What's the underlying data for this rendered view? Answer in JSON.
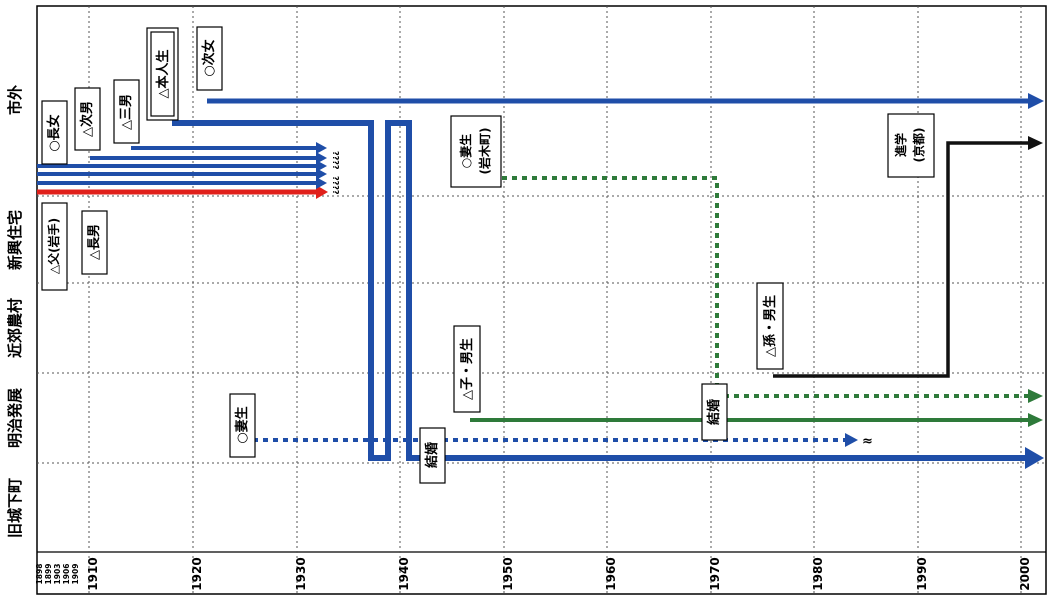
{
  "zones": [
    {
      "key": "shigai",
      "label": "市外"
    },
    {
      "key": "shinko",
      "label": "新興住宅"
    },
    {
      "key": "kinko",
      "label": "近郊農村"
    },
    {
      "key": "meiji",
      "label": "明治発展"
    },
    {
      "key": "kyujo",
      "label": "旧城下町"
    }
  ],
  "years": {
    "small_ticks": [
      "1898",
      "1899",
      "1903",
      "1906",
      "1909"
    ],
    "decades": [
      "1910",
      "1920",
      "1930",
      "1940",
      "1950",
      "1960",
      "1970",
      "1980",
      "1990",
      "2000"
    ]
  },
  "labels": {
    "chonan_f": "○長女",
    "jinan": "△次男",
    "sannan": "△三男",
    "honnin": "△本人生",
    "jijo": "○次女",
    "chichi": "△父(岩手)",
    "chonan": "△長男",
    "tsuma_iwaki": "○妻生\n(岩木町)",
    "shingaku": "進学\n(京都)",
    "mago": "△孫・男生",
    "ko": "△子・男生",
    "kekkon1": "結婚",
    "kekkon2": "結婚",
    "tsuma": "○妻生",
    "unknown": "????",
    "death_mark": "≈"
  },
  "colors": {
    "blue": "#1f4ea8",
    "red": "#e0201b",
    "green": "#2e7a3a",
    "black": "#111111"
  }
}
